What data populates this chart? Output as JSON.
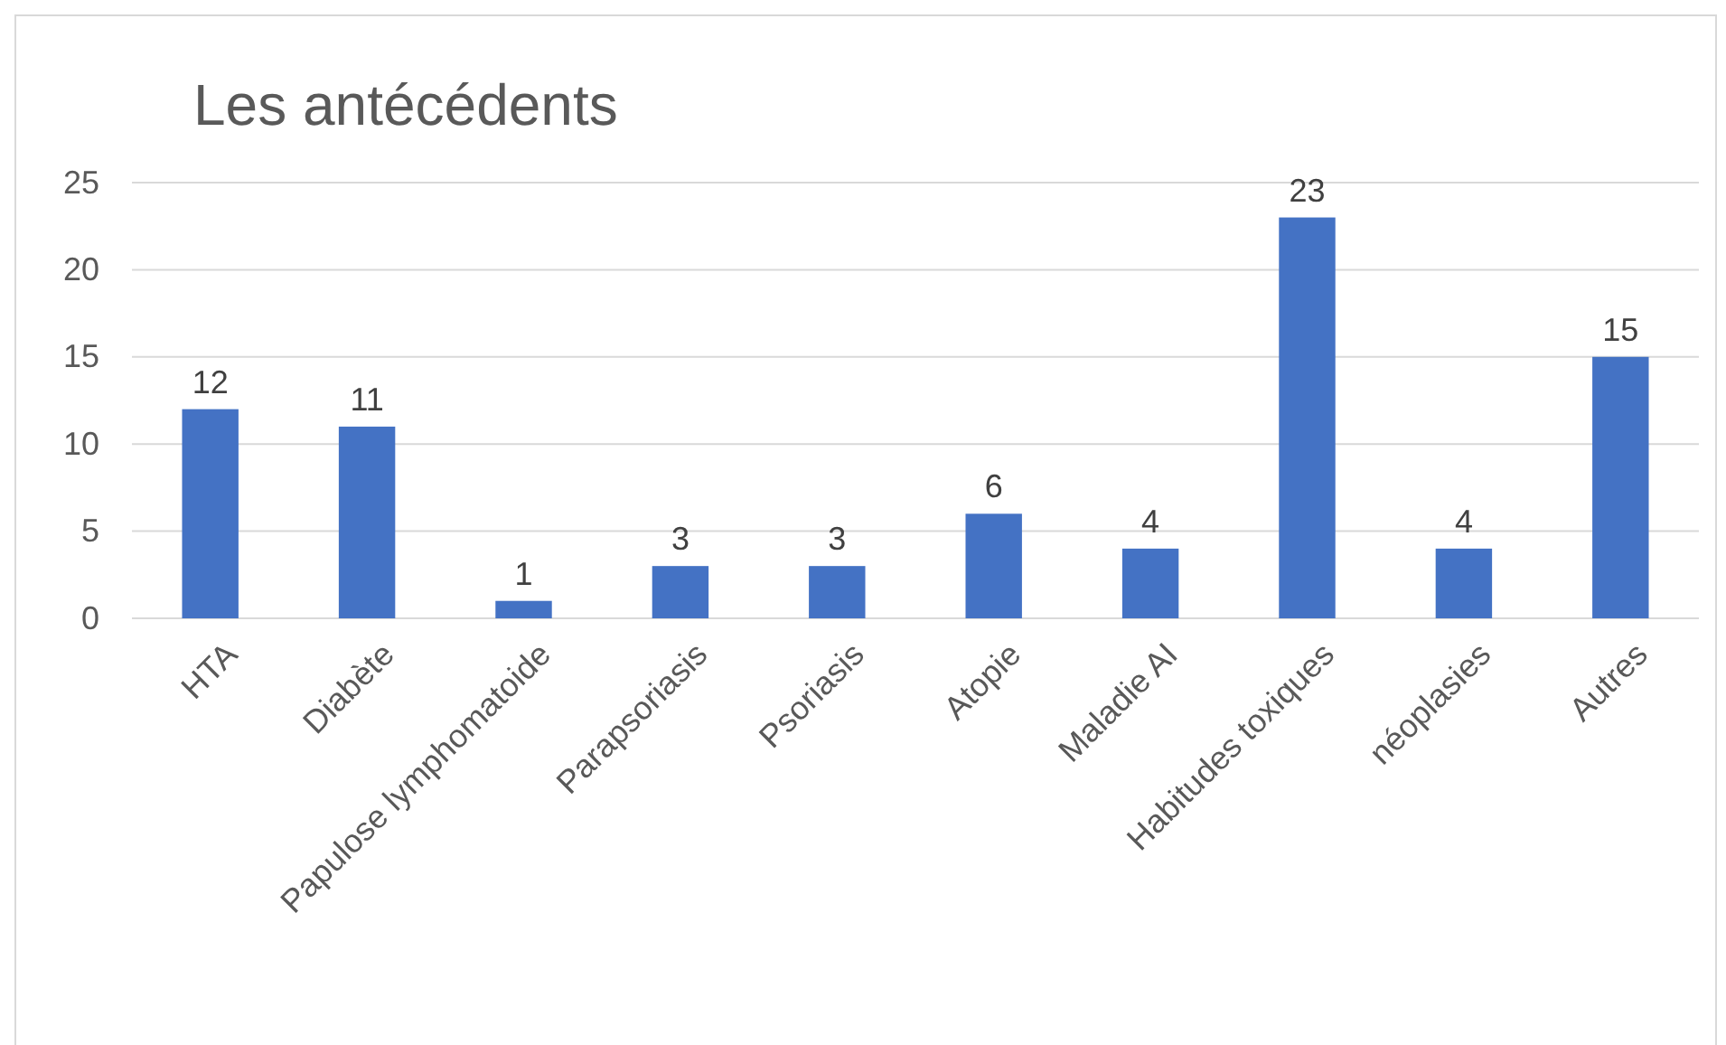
{
  "chart_data": {
    "type": "bar",
    "title": "Les antécédents",
    "categories": [
      "HTA",
      "Diabète",
      "Papulose lymphomatoide",
      "Parapsoriasis",
      "Psoriasis",
      "Atopie",
      "Maladie AI",
      "Habitudes toxiques",
      "néoplasies",
      "Autres"
    ],
    "values": [
      12,
      11,
      1,
      3,
      3,
      6,
      4,
      23,
      4,
      15
    ],
    "color": "#4472c4",
    "ylim": [
      0,
      25
    ],
    "yticks": [
      0,
      5,
      10,
      15,
      20,
      25
    ],
    "grid": "y",
    "data_labels": true
  }
}
